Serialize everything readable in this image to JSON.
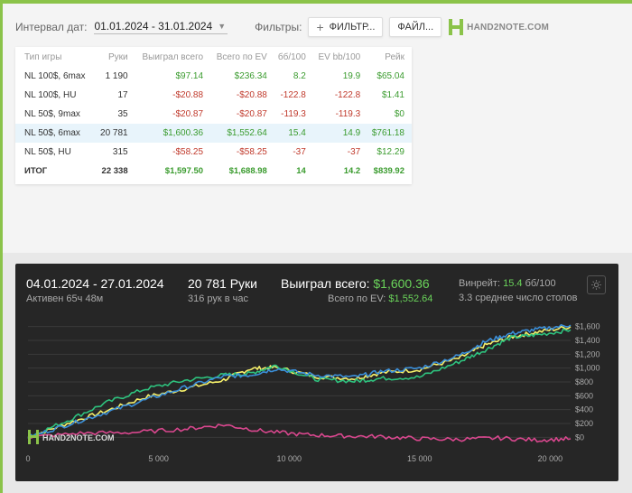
{
  "toolbar": {
    "interval_label": "Интервал дат:",
    "date_range": "01.01.2024 - 31.01.2024",
    "filters_label": "Фильтры:",
    "filter_button": "ФИЛЬТР...",
    "file_button": "ФАЙЛ...",
    "logo_text": "HAND2NOTE.COM"
  },
  "table": {
    "headers": [
      "Тип игры",
      "Руки",
      "Выиграл всего",
      "Всего по EV",
      "бб/100",
      "EV bb/100",
      "Рейк"
    ],
    "rows": [
      {
        "game": "NL 100$, 6max",
        "hands": "1 190",
        "won": "$97.14",
        "ev": "$236.34",
        "bb100": "8.2",
        "evbb": "19.9",
        "rake": "$65.04",
        "won_sign": "pos",
        "ev_sign": "pos",
        "bb_sign": "pos",
        "evbb_sign": "pos"
      },
      {
        "game": "NL 100$, HU",
        "hands": "17",
        "won": "-$20.88",
        "ev": "-$20.88",
        "bb100": "-122.8",
        "evbb": "-122.8",
        "rake": "$1.41",
        "won_sign": "neg",
        "ev_sign": "neg",
        "bb_sign": "neg",
        "evbb_sign": "neg"
      },
      {
        "game": "NL 50$, 9max",
        "hands": "35",
        "won": "-$20.87",
        "ev": "-$20.87",
        "bb100": "-119.3",
        "evbb": "-119.3",
        "rake": "$0",
        "won_sign": "neg",
        "ev_sign": "neg",
        "bb_sign": "neg",
        "evbb_sign": "neg"
      },
      {
        "game": "NL 50$, 6max",
        "hands": "20 781",
        "won": "$1,600.36",
        "ev": "$1,552.64",
        "bb100": "15.4",
        "evbb": "14.9",
        "rake": "$761.18",
        "won_sign": "pos",
        "ev_sign": "pos",
        "bb_sign": "pos",
        "evbb_sign": "pos",
        "highlight": true
      },
      {
        "game": "NL 50$, HU",
        "hands": "315",
        "won": "-$58.25",
        "ev": "-$58.25",
        "bb100": "-37",
        "evbb": "-37",
        "rake": "$12.29",
        "won_sign": "neg",
        "ev_sign": "neg",
        "bb_sign": "neg",
        "evbb_sign": "neg"
      }
    ],
    "total": {
      "game": "ИТОГ",
      "hands": "22 338",
      "won": "$1,597.50",
      "ev": "$1,688.98",
      "bb100": "14",
      "evbb": "14.2",
      "rake": "$839.92"
    }
  },
  "chart_header": {
    "date_range": "04.01.2024 - 27.01.2024",
    "active": "Активен 65ч 48м",
    "hands": "20 781 Руки",
    "hands_rate": "316 рук в час",
    "won_label": "Выиграл всего:",
    "won_value": "$1,600.36",
    "ev_label": "Всего по EV:",
    "ev_value": "$1,552.64",
    "winrate_label": "Винрейт:",
    "winrate_value": "15.4",
    "winrate_unit": "бб/100",
    "tables": "3.3 среднее число столов",
    "watermark": "HAND2NOTE.COM"
  },
  "colors": {
    "won": "#f6f06a",
    "ev": "#2ec27e",
    "showdown": "#3b8fd9",
    "nonshowdown": "#d9478e",
    "positive": "#3a9b2e",
    "negative": "#c0392b"
  },
  "chart_data": {
    "type": "line",
    "x_ticks": [
      "0",
      "5 000",
      "10 000",
      "15 000",
      "20 000"
    ],
    "y_ticks": [
      "$1,600",
      "$1,400",
      "$1,200",
      "$1,000",
      "$800",
      "$600",
      "$400",
      "$200",
      "$0"
    ],
    "xlim": [
      0,
      20781
    ],
    "ylim": [
      -100,
      1700
    ],
    "series": [
      {
        "key": "won",
        "color": "#f6f06a",
        "x": [
          0,
          1500,
          3000,
          4500,
          6000,
          7500,
          8500,
          9500,
          11000,
          12500,
          13500,
          15000,
          16500,
          17500,
          18500,
          19500,
          20781
        ],
        "y": [
          0,
          200,
          380,
          580,
          700,
          830,
          990,
          1010,
          880,
          850,
          930,
          980,
          1140,
          1330,
          1450,
          1520,
          1600
        ]
      },
      {
        "key": "ev",
        "color": "#2ec27e",
        "x": [
          0,
          1500,
          3000,
          4500,
          6000,
          7500,
          8500,
          9500,
          11000,
          12500,
          13500,
          15000,
          16500,
          17500,
          18500,
          19500,
          20781
        ],
        "y": [
          0,
          240,
          500,
          700,
          820,
          900,
          920,
          1040,
          840,
          810,
          850,
          870,
          1090,
          1260,
          1440,
          1480,
          1552
        ]
      },
      {
        "key": "showdown",
        "color": "#3b8fd9",
        "x": [
          0,
          1500,
          3000,
          4500,
          6000,
          7500,
          8500,
          9500,
          11000,
          12500,
          13500,
          15000,
          16500,
          17500,
          18500,
          19500,
          20781
        ],
        "y": [
          0,
          180,
          360,
          540,
          720,
          880,
          900,
          990,
          900,
          870,
          950,
          1000,
          1180,
          1380,
          1500,
          1560,
          1620
        ]
      },
      {
        "key": "nonshowdown",
        "color": "#d9478e",
        "x": [
          0,
          2000,
          4000,
          6000,
          7500,
          9000,
          10500,
          12000,
          13500,
          15000,
          16500,
          18000,
          19500,
          20781
        ],
        "y": [
          0,
          60,
          70,
          120,
          180,
          90,
          40,
          20,
          10,
          -20,
          -30,
          -10,
          -40,
          -20
        ]
      }
    ]
  }
}
